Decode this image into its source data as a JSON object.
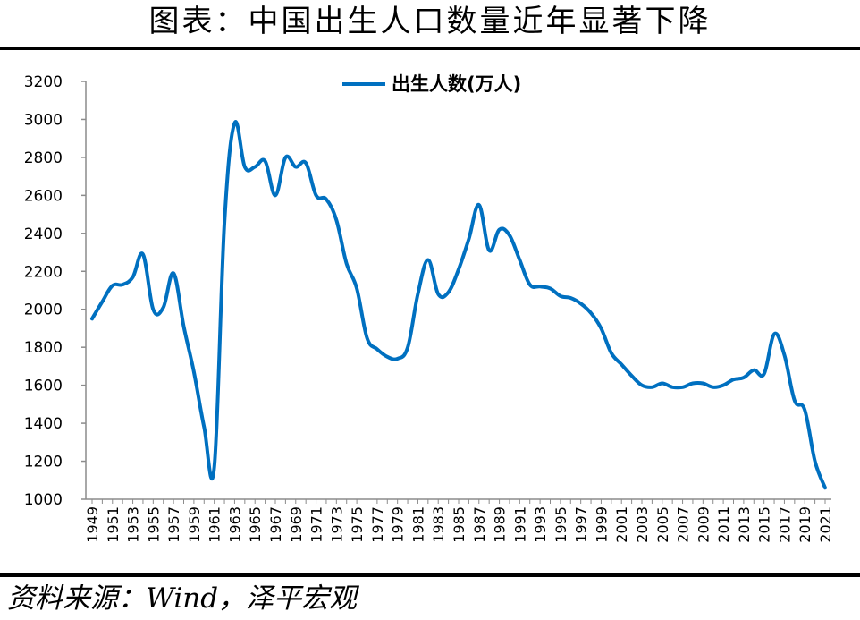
{
  "title": "图表：中国出生人口数量近年显著下降",
  "source": "资料来源：Wind，泽平宏观",
  "colors": {
    "line": "#0070C0",
    "axis": "#8c8c8c",
    "text": "#000000"
  },
  "chart_data": {
    "type": "line",
    "title": "图表：中国出生人口数量近年显著下降",
    "xlabel": "",
    "ylabel": "",
    "ylim": [
      1000,
      3200
    ],
    "yticks": [
      1000,
      1200,
      1400,
      1600,
      1800,
      2000,
      2200,
      2400,
      2600,
      2800,
      3000,
      3200
    ],
    "xtick_labels": [
      "1949",
      "1951",
      "1953",
      "1955",
      "1957",
      "1959",
      "1961",
      "1963",
      "1965",
      "1967",
      "1969",
      "1971",
      "1973",
      "1975",
      "1977",
      "1979",
      "1981",
      "1983",
      "1985",
      "1987",
      "1989",
      "1991",
      "1993",
      "1995",
      "1997",
      "1999",
      "2001",
      "2003",
      "2005",
      "2007",
      "2009",
      "2011",
      "2013",
      "2015",
      "2017",
      "2019",
      "2021"
    ],
    "grid": false,
    "legend_position": "top-center",
    "x": [
      1949,
      1950,
      1951,
      1952,
      1953,
      1954,
      1955,
      1956,
      1957,
      1958,
      1959,
      1960,
      1961,
      1962,
      1963,
      1964,
      1965,
      1966,
      1967,
      1968,
      1969,
      1970,
      1971,
      1972,
      1973,
      1974,
      1975,
      1976,
      1977,
      1978,
      1979,
      1980,
      1981,
      1982,
      1983,
      1984,
      1985,
      1986,
      1987,
      1988,
      1989,
      1990,
      1991,
      1992,
      1993,
      1994,
      1995,
      1996,
      1997,
      1998,
      1999,
      2000,
      2001,
      2002,
      2003,
      2004,
      2005,
      2006,
      2007,
      2008,
      2009,
      2010,
      2011,
      2012,
      2013,
      2014,
      2015,
      2016,
      2017,
      2018,
      2019,
      2020,
      2021
    ],
    "series": [
      {
        "name": "出生人数(万人)",
        "values": [
          1950,
          2040,
          2125,
          2130,
          2170,
          2290,
          2000,
          2010,
          2190,
          1910,
          1670,
          1380,
          1170,
          2460,
          2980,
          2750,
          2750,
          2780,
          2600,
          2800,
          2750,
          2770,
          2600,
          2580,
          2470,
          2240,
          2110,
          1850,
          1790,
          1750,
          1740,
          1800,
          2080,
          2260,
          2080,
          2090,
          2210,
          2370,
          2550,
          2310,
          2420,
          2390,
          2260,
          2130,
          2120,
          2110,
          2070,
          2060,
          2030,
          1980,
          1900,
          1770,
          1710,
          1650,
          1600,
          1590,
          1610,
          1590,
          1590,
          1610,
          1610,
          1590,
          1600,
          1630,
          1640,
          1680,
          1660,
          1870,
          1760,
          1520,
          1470,
          1200,
          1060
        ]
      }
    ]
  }
}
